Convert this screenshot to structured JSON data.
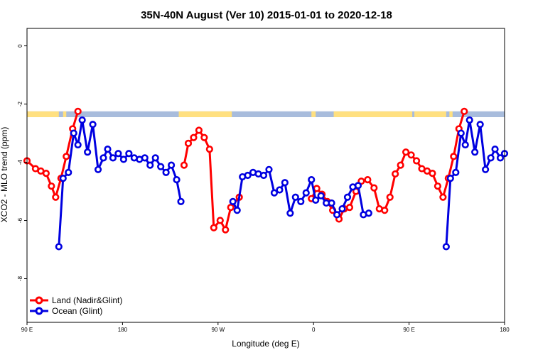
{
  "chart_data": {
    "type": "line",
    "title": "35N-40N August (Ver 10)   2015-01-01 to 2020-12-18",
    "xlabel": "Longitude (deg E)",
    "ylabel": "XCO2 - MLO trend (ppm)",
    "xlim": [
      90,
      540
    ],
    "ylim": [
      -9.5,
      0.6
    ],
    "x_ticks": [
      {
        "value": 90,
        "label": "90 E"
      },
      {
        "value": 180,
        "label": "180"
      },
      {
        "value": 270,
        "label": "90 W"
      },
      {
        "value": 360,
        "label": "0"
      },
      {
        "value": 450,
        "label": "90 E"
      },
      {
        "value": 540,
        "label": "180"
      }
    ],
    "y_ticks": [
      {
        "value": 0,
        "label": "0"
      },
      {
        "value": -2,
        "label": "-2"
      },
      {
        "value": -4,
        "label": "-4"
      },
      {
        "value": -6,
        "label": "-6"
      },
      {
        "value": -8,
        "label": "-8"
      }
    ],
    "grid": false,
    "legend": "bottom-left",
    "series": [
      {
        "name": "Land (Nadir&Glint)",
        "color": "#ff0000",
        "segments": [
          [
            [
              90,
              -3.95
            ],
            [
              98,
              -4.22
            ],
            [
              103,
              -4.3
            ],
            [
              108,
              -4.38
            ],
            [
              113,
              -4.82
            ],
            [
              117,
              -5.2
            ],
            [
              122,
              -4.55
            ],
            [
              127,
              -3.8
            ],
            [
              133,
              -2.85
            ],
            [
              138,
              -2.25
            ]
          ],
          [
            [
              238,
              -4.1
            ],
            [
              242,
              -3.35
            ],
            [
              247,
              -3.15
            ],
            [
              252,
              -2.9
            ],
            [
              257,
              -3.15
            ],
            [
              262,
              -3.55
            ],
            [
              266,
              -6.25
            ],
            [
              272,
              -6.0
            ],
            [
              277,
              -6.32
            ],
            [
              282,
              -5.55
            ],
            [
              290,
              -5.2
            ]
          ],
          [
            [
              358,
              -5.25
            ],
            [
              363,
              -4.9
            ],
            [
              368,
              -5.1
            ],
            [
              373,
              -5.35
            ],
            [
              378,
              -5.65
            ],
            [
              384,
              -5.95
            ],
            [
              389,
              -5.6
            ],
            [
              394,
              -5.55
            ],
            [
              400,
              -5.0
            ],
            [
              405,
              -4.65
            ],
            [
              411,
              -4.6
            ],
            [
              417,
              -4.88
            ],
            [
              422,
              -5.6
            ],
            [
              427,
              -5.65
            ],
            [
              432,
              -5.2
            ],
            [
              437,
              -4.4
            ],
            [
              442,
              -4.1
            ],
            [
              447,
              -3.65
            ],
            [
              452,
              -3.75
            ],
            [
              457,
              -3.95
            ],
            [
              462,
              -4.22
            ],
            [
              467,
              -4.3
            ],
            [
              472,
              -4.38
            ],
            [
              477,
              -4.82
            ],
            [
              482,
              -5.2
            ],
            [
              487,
              -4.55
            ],
            [
              492,
              -3.8
            ],
            [
              497,
              -2.85
            ],
            [
              502,
              -2.25
            ]
          ]
        ]
      },
      {
        "name": "Ocean (Glint)",
        "color": "#0000e0",
        "segments": [
          [
            [
              120,
              -6.9
            ],
            [
              124,
              -4.55
            ],
            [
              129,
              -4.35
            ],
            [
              134,
              -3.0
            ],
            [
              138,
              -3.4
            ],
            [
              142,
              -2.55
            ],
            [
              147,
              -3.65
            ],
            [
              152,
              -2.7
            ],
            [
              157,
              -4.25
            ],
            [
              162,
              -3.85
            ],
            [
              166,
              -3.55
            ],
            [
              171,
              -3.85
            ],
            [
              176,
              -3.7
            ],
            [
              181,
              -3.9
            ],
            [
              186,
              -3.7
            ],
            [
              191,
              -3.85
            ],
            [
              196,
              -3.9
            ],
            [
              201,
              -3.85
            ],
            [
              206,
              -4.1
            ],
            [
              211,
              -3.85
            ],
            [
              216,
              -4.15
            ],
            [
              221,
              -4.35
            ],
            [
              226,
              -4.1
            ],
            [
              231,
              -4.6
            ],
            [
              235,
              -5.35
            ]
          ],
          [
            [
              284,
              -5.35
            ],
            [
              288,
              -5.65
            ],
            [
              293,
              -4.5
            ],
            [
              298,
              -4.45
            ],
            [
              303,
              -4.35
            ],
            [
              308,
              -4.4
            ],
            [
              313,
              -4.45
            ],
            [
              318,
              -4.25
            ],
            [
              323,
              -5.05
            ],
            [
              328,
              -4.95
            ],
            [
              333,
              -4.7
            ],
            [
              338,
              -5.75
            ],
            [
              343,
              -5.2
            ],
            [
              348,
              -5.35
            ],
            [
              353,
              -5.05
            ],
            [
              358,
              -4.6
            ],
            [
              362,
              -5.3
            ],
            [
              367,
              -5.15
            ],
            [
              372,
              -5.4
            ],
            [
              377,
              -5.4
            ],
            [
              382,
              -5.8
            ],
            [
              387,
              -5.6
            ],
            [
              392,
              -5.2
            ],
            [
              397,
              -4.85
            ],
            [
              402,
              -4.8
            ],
            [
              407,
              -5.8
            ],
            [
              412,
              -5.75
            ]
          ],
          [
            [
              485,
              -6.9
            ],
            [
              489,
              -4.55
            ],
            [
              494,
              -4.35
            ],
            [
              499,
              -3.0
            ],
            [
              503,
              -3.4
            ],
            [
              507,
              -2.55
            ],
            [
              512,
              -3.65
            ],
            [
              517,
              -2.7
            ],
            [
              522,
              -4.25
            ],
            [
              527,
              -3.85
            ],
            [
              531,
              -3.55
            ],
            [
              536,
              -3.85
            ],
            [
              540,
              -3.7
            ]
          ]
        ]
      }
    ],
    "land_ocean_strip": {
      "y_range": [
        -2.25,
        -2.45
      ],
      "land_color": "#ffe080",
      "ocean_color": "#a8bcdc",
      "land_spans": [
        [
          90,
          120
        ],
        [
          124,
          127
        ],
        [
          233,
          283
        ],
        [
          358,
          362
        ],
        [
          379,
          453
        ],
        [
          455,
          485
        ],
        [
          488,
          491
        ]
      ]
    }
  }
}
